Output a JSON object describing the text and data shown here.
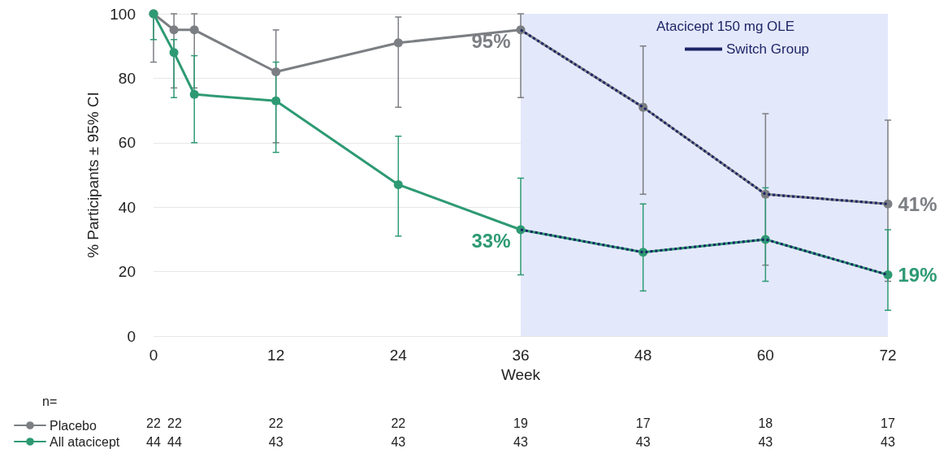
{
  "chart_data": {
    "type": "line",
    "xlabel": "Week",
    "ylabel": "% Participants ± 95% CI",
    "xlim": [
      0,
      72
    ],
    "xticks": [
      0,
      12,
      24,
      36,
      48,
      60,
      72
    ],
    "ylim": [
      0,
      100
    ],
    "yticks": [
      0,
      20,
      40,
      60,
      80,
      100
    ],
    "grid": "y",
    "marker": "circle",
    "legend": "bottom left",
    "legend_title": "Atacicept 150 mg OLE",
    "series": [
      {
        "name": "Placebo",
        "color": "#7b7e82",
        "x": [
          0,
          2,
          4,
          12,
          24,
          36,
          48,
          60,
          72
        ],
        "values": [
          100,
          95,
          95,
          82,
          91,
          95,
          71,
          44,
          41
        ],
        "errors": [
          [
            85,
            100
          ],
          [
            77,
            100
          ],
          [
            77,
            100
          ],
          [
            60,
            95
          ],
          [
            71,
            99
          ],
          [
            74,
            100
          ],
          [
            44,
            90
          ],
          [
            22,
            69
          ],
          [
            17,
            67
          ]
        ],
        "value_labels": [
          null,
          null,
          null,
          null,
          null,
          "95%",
          null,
          null,
          "41%"
        ]
      },
      {
        "name": "All atacicept",
        "color": "#2e9a73",
        "x": [
          0,
          2,
          4,
          12,
          24,
          36,
          48,
          60,
          72
        ],
        "values": [
          100,
          88,
          75,
          73,
          47,
          33,
          26,
          30,
          19
        ],
        "errors": [
          [
            92,
            100
          ],
          [
            74,
            92
          ],
          [
            60,
            87
          ],
          [
            57,
            85
          ],
          [
            31,
            62
          ],
          [
            19,
            49
          ],
          [
            14,
            41
          ],
          [
            17,
            46
          ],
          [
            8,
            33
          ]
        ],
        "value_labels": [
          null,
          null,
          null,
          null,
          null,
          "33%",
          null,
          null,
          "19%"
        ]
      },
      {
        "name": "Switch Group",
        "color": "#1c2566",
        "line_style": "dotted",
        "marker": "none",
        "x": [
          36,
          48,
          60,
          72
        ],
        "values": [
          95,
          71,
          44,
          41
        ]
      },
      {
        "color": "#1c2566",
        "line_style": "dotted",
        "marker": "none",
        "x": [
          36,
          48,
          60,
          72
        ],
        "values": [
          33,
          26,
          30,
          19
        ]
      }
    ],
    "bands": [
      {
        "axis": "x",
        "from": 36,
        "to": 72,
        "color": "#e4e8fb"
      }
    ],
    "annotations": [
      "n=",
      "22",
      "22",
      "22",
      "22",
      "19",
      "17",
      "18",
      "17",
      "44",
      "44",
      "43",
      "43",
      "43",
      "43",
      "43",
      "43"
    ]
  }
}
